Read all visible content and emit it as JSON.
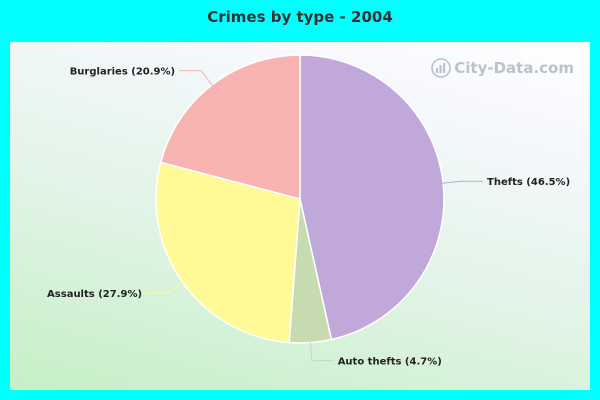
{
  "watermark": {
    "text": "City-Data.com",
    "icon": "city-data-logo-icon"
  },
  "chart_data": {
    "type": "pie",
    "title": "Crimes by type - 2004",
    "slices": [
      {
        "label": "Thefts (46.5%)",
        "name": "Thefts",
        "value": 46.5,
        "color": "#c0a8db"
      },
      {
        "label": "Auto thefts (4.7%)",
        "name": "Auto thefts",
        "value": 4.7,
        "color": "#c6dcb0"
      },
      {
        "label": "Assaults (27.9%)",
        "name": "Assaults",
        "value": 27.9,
        "color": "#fffa96"
      },
      {
        "label": "Burglaries (20.9%)",
        "name": "Burglaries",
        "value": 20.9,
        "color": "#f7b2b2"
      }
    ],
    "start": "12 o'clock",
    "direction": "clockwise"
  }
}
